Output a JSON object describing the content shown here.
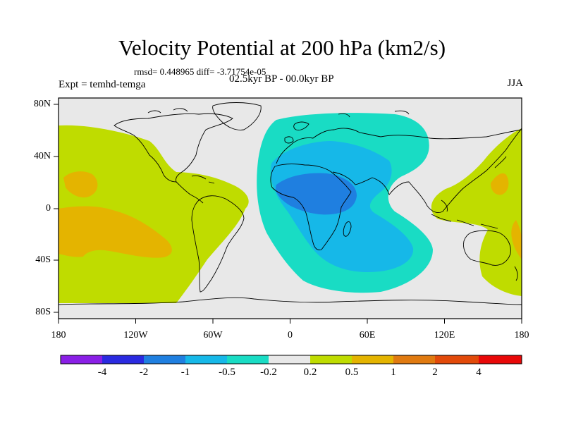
{
  "header": {
    "title": "Velocity Potential at 200 hPa (km2/s)",
    "stats": "rmsd= 0.448965 diff= -3.71754e-05",
    "experiment": "Expt = temhd-temga",
    "period": "02.5kyr BP - 00.0kyr BP",
    "season": "JJA"
  },
  "axes": {
    "lat_labels": [
      "80N",
      "40N",
      "0",
      "40S",
      "80S"
    ],
    "lon_labels": [
      "180",
      "120W",
      "60W",
      "0",
      "60E",
      "120E",
      "180"
    ]
  },
  "colorbar": {
    "colors": [
      "#8a1fe6",
      "#2a2ae0",
      "#1f7fe0",
      "#16b8e8",
      "#19dcc4",
      "#e8e8e8",
      "#bfdc00",
      "#e4b400",
      "#e07a10",
      "#e24a0a",
      "#e80808"
    ],
    "labels": [
      "-4",
      "-2",
      "-1",
      "-0.5",
      "-0.2",
      "0.2",
      "0.5",
      "1",
      "2",
      "4"
    ]
  },
  "map_colors": {
    "background": "#e8e8e8",
    "coast": "#000000"
  }
}
